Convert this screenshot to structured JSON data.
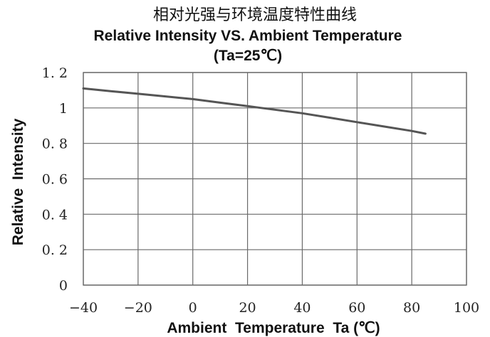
{
  "chart_data": {
    "type": "line",
    "title": "相对光强与环境温度特性曲线",
    "subtitle": "Relative Intensity VS. Ambient Temperature",
    "condition": "(Ta=25℃)",
    "xlabel": "Ambient  Temperature  Ta (℃)",
    "ylabel": "Relative  Intensity",
    "xlim": [
      -40,
      100
    ],
    "ylim": [
      0,
      1.2
    ],
    "x_ticks": [
      -40,
      -20,
      0,
      20,
      40,
      60,
      80,
      100
    ],
    "x_tick_labels": [
      "−40",
      "−20",
      "0",
      "20",
      "40",
      "60",
      "80",
      "100"
    ],
    "y_ticks": [
      0,
      0.2,
      0.4,
      0.6,
      0.8,
      1,
      1.2
    ],
    "y_tick_labels": [
      "0",
      "0. 2",
      "0. 4",
      "0. 6",
      "0. 8",
      "1",
      "1. 2"
    ],
    "grid": true,
    "legend": "none",
    "series": [
      {
        "color": "#555555",
        "x": [
          -40,
          -30,
          -20,
          -10,
          0,
          10,
          20,
          25,
          30,
          40,
          50,
          60,
          70,
          80,
          85
        ],
        "y": [
          1.11,
          1.095,
          1.08,
          1.065,
          1.05,
          1.03,
          1.01,
          1.0,
          0.99,
          0.97,
          0.945,
          0.92,
          0.895,
          0.87,
          0.855
        ]
      }
    ]
  }
}
